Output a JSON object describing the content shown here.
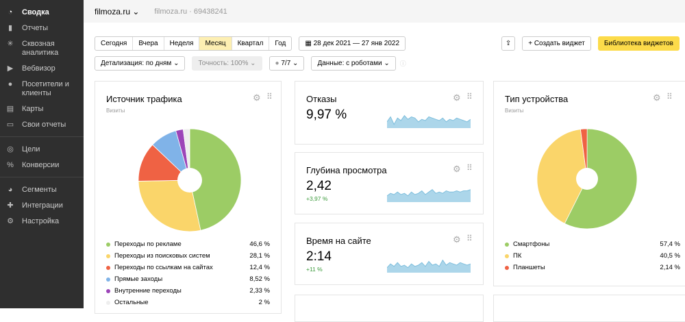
{
  "sidebar": {
    "items": [
      {
        "label": "Сводка",
        "icon": "gauge-icon",
        "active": true
      },
      {
        "label": "Отчеты",
        "icon": "bar-chart-icon"
      },
      {
        "label": "Сквозная аналитика",
        "icon": "snowflake-icon"
      },
      {
        "label": "Вебвизор",
        "icon": "play-icon"
      },
      {
        "label": "Посетители и клиенты",
        "icon": "person-icon"
      },
      {
        "label": "Карты",
        "icon": "map-icon"
      },
      {
        "label": "Свои отчеты",
        "icon": "monitor-icon"
      },
      {
        "label": "Цели",
        "icon": "target-icon"
      },
      {
        "label": "Конверсии",
        "icon": "percent-icon"
      },
      {
        "label": "Сегменты",
        "icon": "pie-icon"
      },
      {
        "label": "Интеграции",
        "icon": "puzzle-icon"
      },
      {
        "label": "Настройка",
        "icon": "gear-icon"
      }
    ]
  },
  "header": {
    "site": "filmoza.ru",
    "counter": "filmoza.ru · 69438241"
  },
  "periods": [
    "Сегодня",
    "Вчера",
    "Неделя",
    "Месяц",
    "Квартал",
    "Год"
  ],
  "selected_period": "Месяц",
  "date_range": "28 дек 2021 — 27 янв 2022",
  "filters": {
    "detail": "Детализация: по дням",
    "accuracy": "Точность: 100%",
    "attribution": "7/7",
    "data": "Данные: с роботами"
  },
  "actions": {
    "create": "Создать виджет",
    "library": "Библиотека виджетов"
  },
  "traffic": {
    "title": "Источник трафика",
    "subtitle": "Визиты",
    "items": [
      {
        "label": "Переходы по рекламе",
        "value": "46,6 %",
        "pct": 46.6,
        "color": "#9ccc65"
      },
      {
        "label": "Переходы из поисковых систем",
        "value": "28,1 %",
        "pct": 28.1,
        "color": "#fad56a"
      },
      {
        "label": "Переходы по ссылкам на сайтах",
        "value": "12,4 %",
        "pct": 12.4,
        "color": "#ef6244"
      },
      {
        "label": "Прямые заходы",
        "value": "8,52 %",
        "pct": 8.52,
        "color": "#80b3e8"
      },
      {
        "label": "Внутренние переходы",
        "value": "2,33 %",
        "pct": 2.33,
        "color": "#9c45b8"
      },
      {
        "label": "Остальные",
        "value": "2 %",
        "pct": 2,
        "color": "#eeeeee"
      }
    ]
  },
  "metrics": [
    {
      "title": "Отказы",
      "value": "9,97 %",
      "delta": "",
      "spark": [
        5,
        9,
        3,
        8,
        6,
        10,
        7,
        9,
        8,
        5,
        7,
        6,
        9,
        8,
        7,
        6,
        8,
        5,
        7,
        6,
        8,
        7,
        6,
        5,
        7
      ]
    },
    {
      "title": "Глубина просмотра",
      "value": "2,42",
      "delta": "+3,97 %",
      "spark": [
        5,
        7,
        6,
        8,
        6,
        7,
        5,
        8,
        6,
        7,
        9,
        6,
        8,
        10,
        7,
        8,
        7,
        9,
        8,
        8,
        9,
        8,
        9,
        9,
        10
      ]
    },
    {
      "title": "Время на сайте",
      "value": "2:14",
      "delta": "+11 %",
      "spark": [
        4,
        7,
        5,
        8,
        5,
        6,
        4,
        7,
        5,
        6,
        8,
        5,
        9,
        6,
        7,
        5,
        10,
        6,
        8,
        7,
        6,
        8,
        7,
        6,
        7
      ]
    }
  ],
  "device": {
    "title": "Тип устройства",
    "subtitle": "Визиты",
    "items": [
      {
        "label": "Смартфоны",
        "value": "57,4 %",
        "pct": 57.4,
        "color": "#9ccc65"
      },
      {
        "label": "ПК",
        "value": "40,5 %",
        "pct": 40.5,
        "color": "#fad56a"
      },
      {
        "label": "Планшеты",
        "value": "2,14 %",
        "pct": 2.14,
        "color": "#ef6244"
      }
    ]
  }
}
